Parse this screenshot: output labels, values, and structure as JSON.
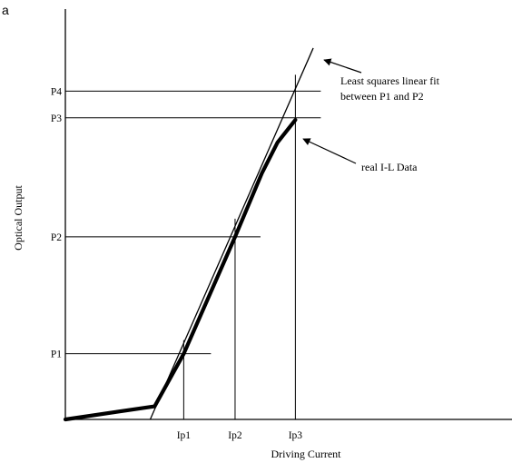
{
  "panel_label": "a",
  "chart_data": {
    "type": "line",
    "title": "",
    "xlabel": "Driving Current",
    "ylabel": "Optical Output",
    "xlim": [
      0,
      100
    ],
    "ylim": [
      0,
      100
    ],
    "grid": false,
    "x_ticks": [
      {
        "label": "Ip1",
        "value": 26.5
      },
      {
        "label": "Ip2",
        "value": 38.0
      },
      {
        "label": "Ip3",
        "value": 51.5
      }
    ],
    "y_ticks": [
      {
        "label": "P1",
        "value": 16.0
      },
      {
        "label": "P2",
        "value": 44.5
      },
      {
        "label": "P3",
        "value": 73.5
      },
      {
        "label": "P4",
        "value": 80.0
      }
    ],
    "series": [
      {
        "name": "real I-L Data",
        "x": [
          0,
          20,
          26.5,
          38.0,
          44.0,
          47.5,
          51.5
        ],
        "y": [
          0,
          3.2,
          16.0,
          44.5,
          60.0,
          67.5,
          73.0
        ]
      },
      {
        "name": "Least squares linear fit between P1 and P2",
        "x": [
          19.0,
          55.5
        ],
        "y": [
          0,
          90.5
        ]
      }
    ],
    "annotations": [
      {
        "text_lines": [
          "Least squares linear fit",
          "between P1 and P2"
        ],
        "points_to": "fit line"
      },
      {
        "text_lines": [
          "real I-L Data"
        ],
        "points_to": "I-L curve"
      }
    ]
  }
}
